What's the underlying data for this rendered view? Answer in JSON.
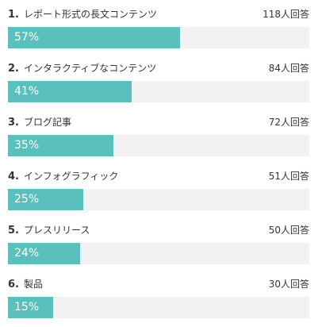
{
  "chart_data": {
    "type": "bar",
    "orientation": "horizontal",
    "bar_color": "#5bbfbd",
    "track_color": "#f2f2f2",
    "value_unit": "%",
    "count_unit": "人回答",
    "items": [
      {
        "rank": "1.",
        "label": "レポート形式の長文コンテンツ",
        "count": 118,
        "count_label": "118人回答",
        "value": 57,
        "value_label": "57%"
      },
      {
        "rank": "2.",
        "label": "インタラクティブなコンテンツ",
        "count": 84,
        "count_label": "84人回答",
        "value": 41,
        "value_label": "41%"
      },
      {
        "rank": "3.",
        "label": "ブログ記事",
        "count": 72,
        "count_label": "72人回答",
        "value": 35,
        "value_label": "35%"
      },
      {
        "rank": "4.",
        "label": "インフォグラフィック",
        "count": 51,
        "count_label": "51人回答",
        "value": 25,
        "value_label": "25%"
      },
      {
        "rank": "5.",
        "label": "プレスリリース",
        "count": 50,
        "count_label": "50人回答",
        "value": 24,
        "value_label": "24%"
      },
      {
        "rank": "6.",
        "label": "製品",
        "count": 30,
        "count_label": "30人回答",
        "value": 15,
        "value_label": "15%"
      }
    ]
  }
}
